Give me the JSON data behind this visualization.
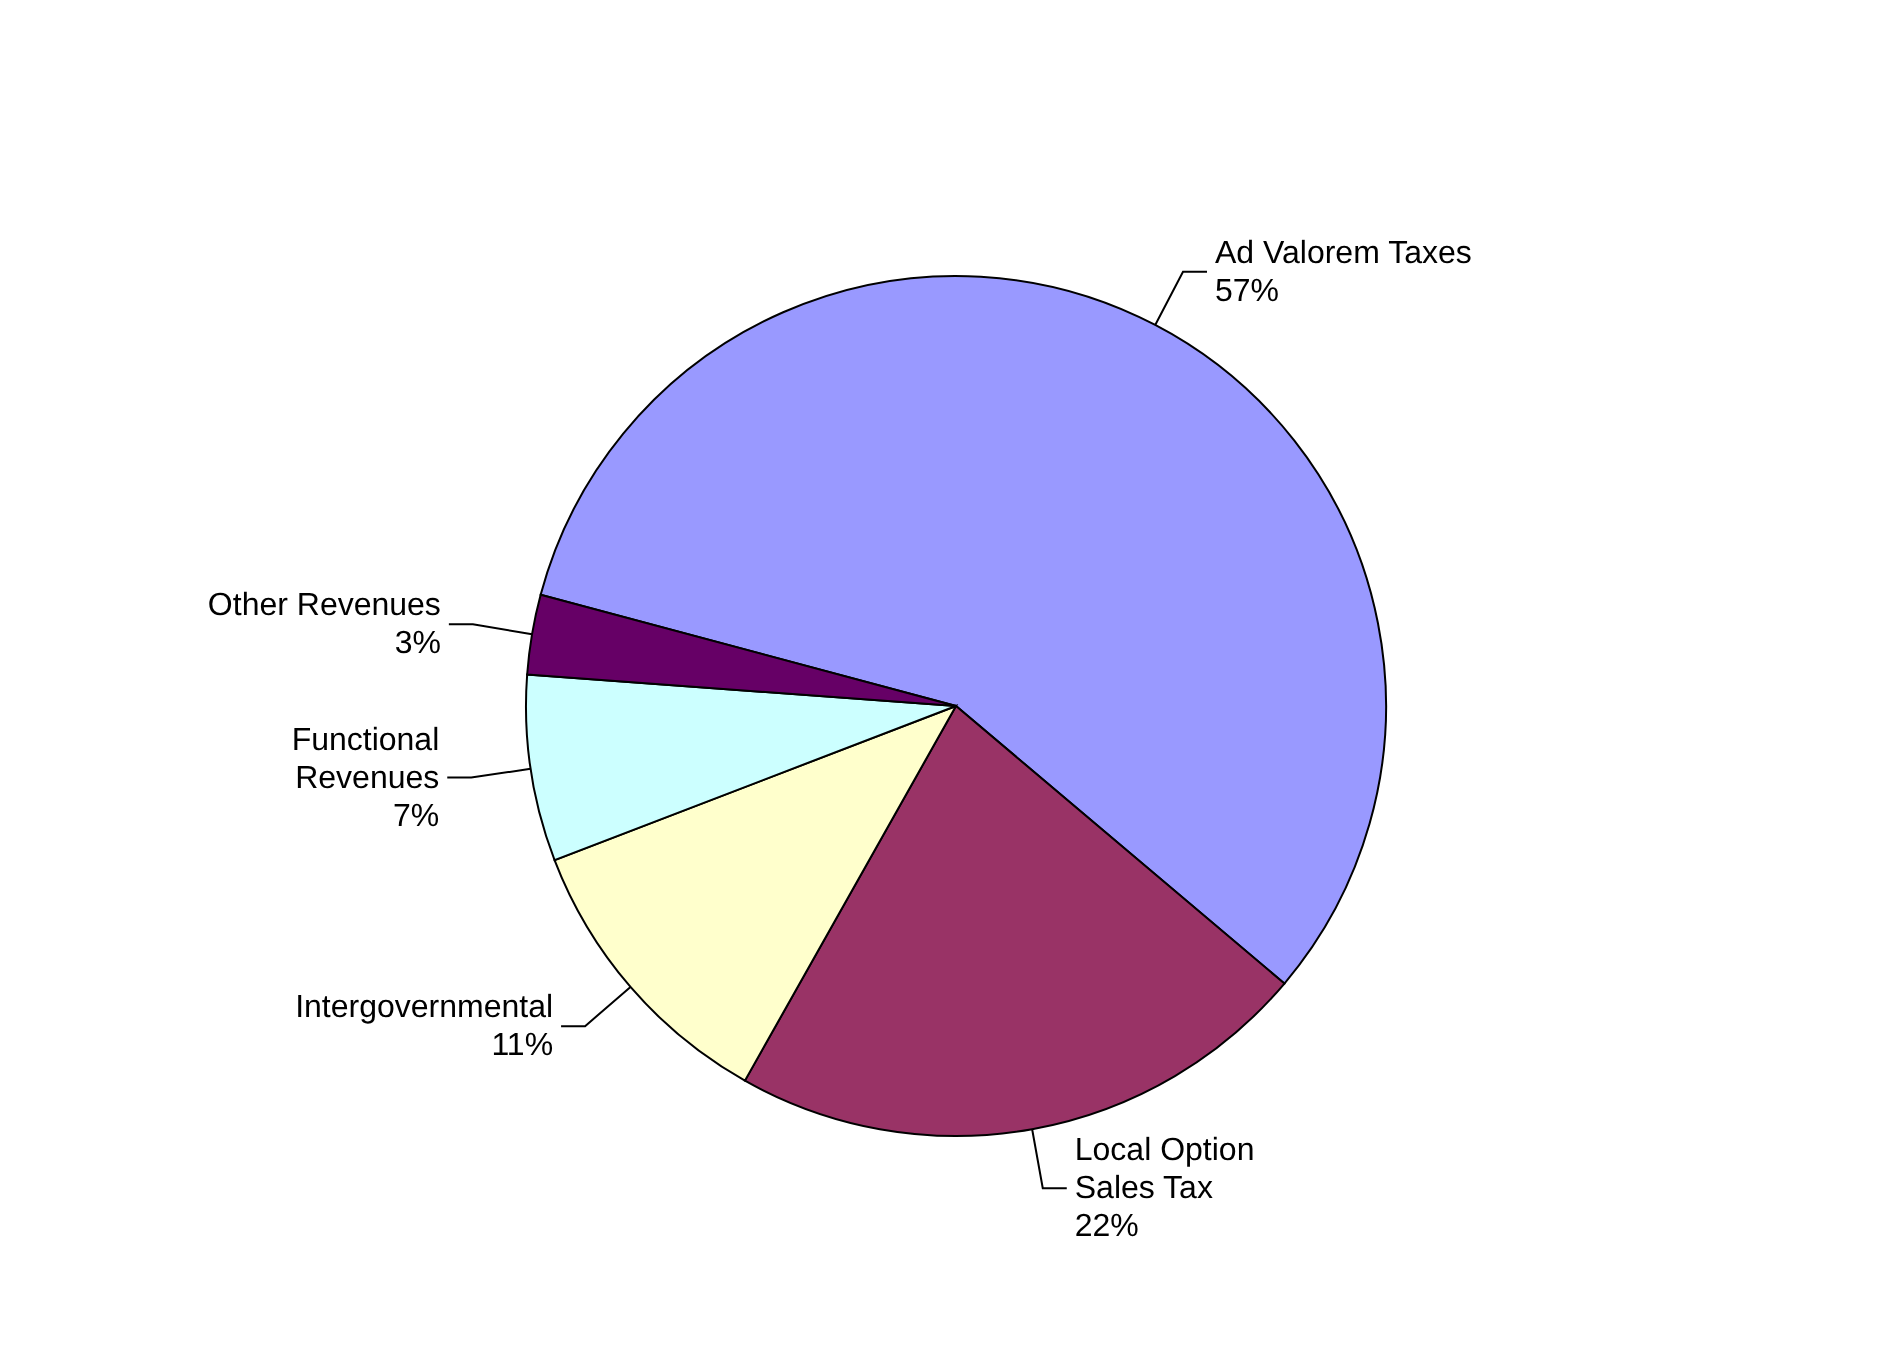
{
  "chart_data": {
    "type": "pie",
    "categories": [
      "Ad Valorem Taxes",
      "Local Option Sales Tax",
      "Intergovernmental",
      "Functional Revenues",
      "Other Revenues"
    ],
    "values": [
      57,
      22,
      11,
      7,
      3
    ],
    "value_labels": [
      "57%",
      "22%",
      "11%",
      "7%",
      "3%"
    ],
    "colors": [
      "#9999ff",
      "#993366",
      "#ffffcc",
      "#ccffff",
      "#660066"
    ]
  }
}
